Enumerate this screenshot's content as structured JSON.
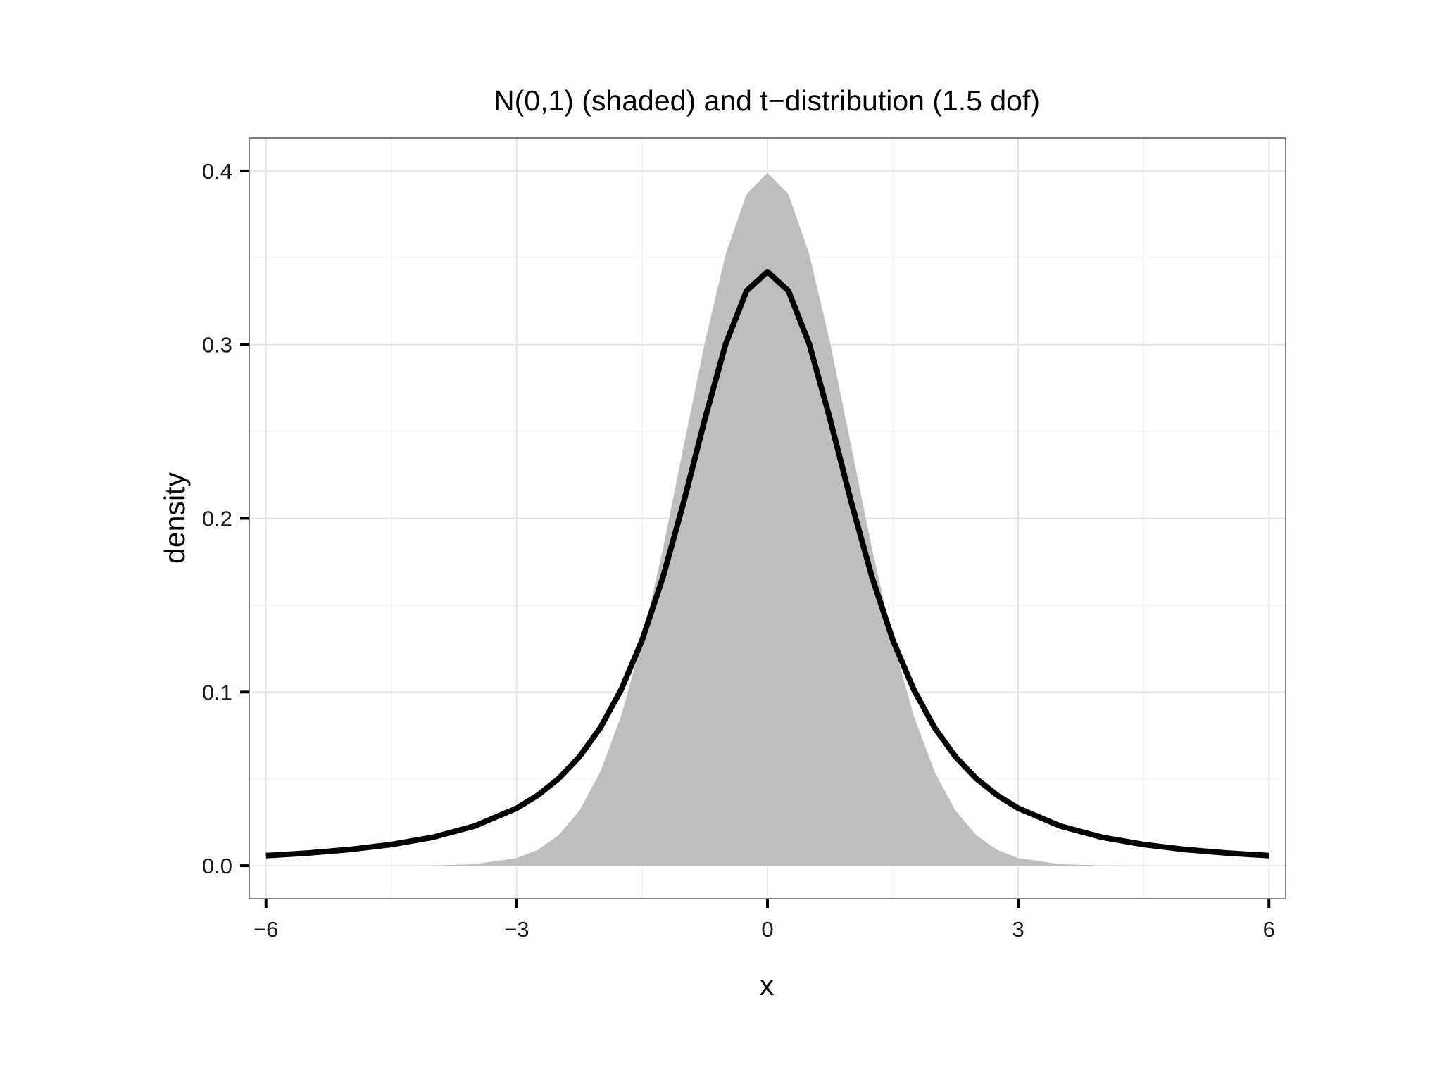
{
  "chart_data": {
    "type": "area",
    "title": "N(0,1) (shaded) and t−distribution (1.5 dof)",
    "xlabel": "x",
    "ylabel": "density",
    "xlim": [
      -6.2,
      6.2
    ],
    "ylim": [
      -0.019,
      0.419
    ],
    "x_ticks": [
      -6,
      -3,
      0,
      3,
      6
    ],
    "x_tick_labels": [
      "−6",
      "−3",
      "0",
      "3",
      "6"
    ],
    "y_ticks": [
      0.0,
      0.1,
      0.2,
      0.3,
      0.4
    ],
    "y_tick_labels": [
      "0.0",
      "0.1",
      "0.2",
      "0.3",
      "0.4"
    ],
    "grid": true,
    "legend": "none",
    "series": [
      {
        "kind": "area",
        "color": "#bebebe",
        "x": [
          -6.0,
          -5.5,
          -5.0,
          -4.5,
          -4.0,
          -3.5,
          -3.0,
          -2.75,
          -2.5,
          -2.25,
          -2.0,
          -1.75,
          -1.5,
          -1.25,
          -1.0,
          -0.75,
          -0.5,
          -0.25,
          0.0,
          0.25,
          0.5,
          0.75,
          1.0,
          1.25,
          1.5,
          1.75,
          2.0,
          2.25,
          2.5,
          2.75,
          3.0,
          3.5,
          4.0,
          4.5,
          5.0,
          5.5,
          6.0
        ],
        "y": [
          0.0,
          0.0,
          0.0,
          0.0,
          0.0001,
          0.0009,
          0.0044,
          0.0091,
          0.0175,
          0.0317,
          0.054,
          0.0863,
          0.1295,
          0.1826,
          0.242,
          0.3011,
          0.3521,
          0.3867,
          0.3989,
          0.3867,
          0.3521,
          0.3011,
          0.242,
          0.1826,
          0.1295,
          0.0863,
          0.054,
          0.0317,
          0.0175,
          0.0091,
          0.0044,
          0.0009,
          0.0001,
          0.0,
          0.0,
          0.0,
          0.0
        ]
      },
      {
        "kind": "line",
        "color": "#000000",
        "x": [
          -6.0,
          -5.5,
          -5.0,
          -4.5,
          -4.0,
          -3.5,
          -3.0,
          -2.75,
          -2.5,
          -2.25,
          -2.0,
          -1.75,
          -1.5,
          -1.25,
          -1.0,
          -0.75,
          -0.5,
          -0.25,
          0.0,
          0.25,
          0.5,
          0.75,
          1.0,
          1.25,
          1.5,
          1.75,
          2.0,
          2.25,
          2.5,
          2.75,
          3.0,
          3.5,
          4.0,
          4.5,
          5.0,
          5.5,
          6.0
        ],
        "y": [
          0.0058,
          0.0073,
          0.0093,
          0.0122,
          0.0164,
          0.0229,
          0.0331,
          0.0405,
          0.0501,
          0.0627,
          0.0794,
          0.1014,
          0.1299,
          0.1662,
          0.2097,
          0.2569,
          0.3004,
          0.331,
          0.342,
          0.331,
          0.3004,
          0.2569,
          0.2097,
          0.1662,
          0.1299,
          0.1014,
          0.0794,
          0.0627,
          0.0501,
          0.0405,
          0.0331,
          0.0229,
          0.0164,
          0.0122,
          0.0093,
          0.0073,
          0.0058
        ]
      }
    ]
  }
}
